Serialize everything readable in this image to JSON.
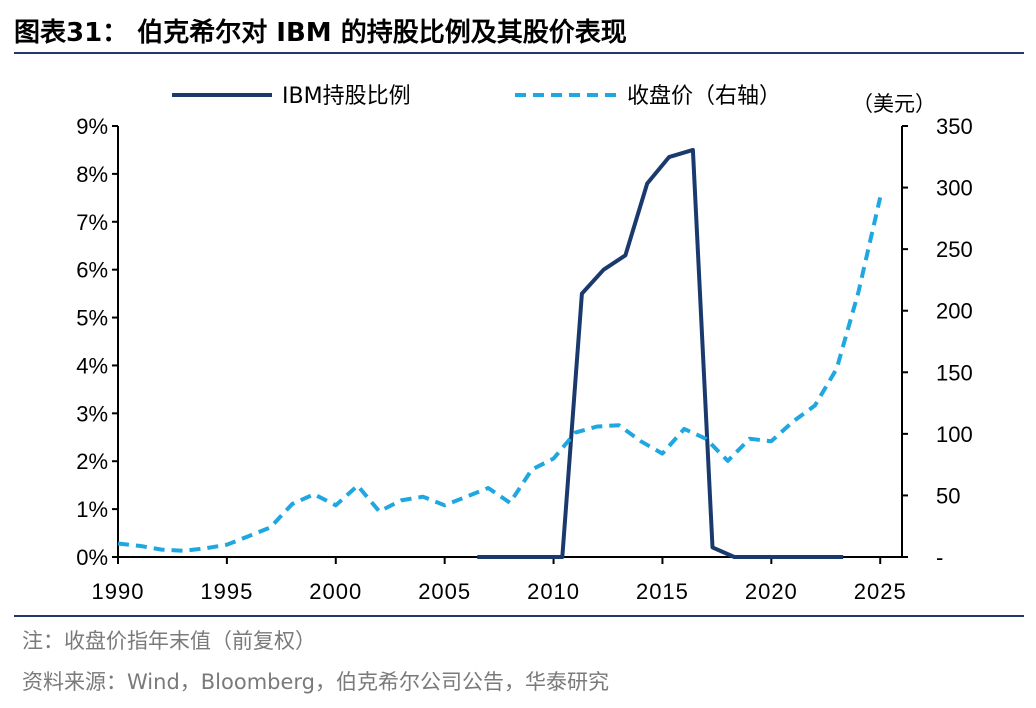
{
  "title": "图表31：  伯克希尔对 IBM 的持股比例及其股价表现",
  "notes": {
    "note": "注：收盘价指年末值（前复权）",
    "source": "资料来源：Wind，Bloomberg，伯克希尔公司公告，华泰研究"
  },
  "colors": {
    "holding": "#1a3a6e",
    "price": "#1ea7e1",
    "rule": "#1f3a68"
  },
  "chart_data": {
    "type": "line",
    "legend_position": "top-center",
    "grid": false,
    "x_ticks": [
      "1990",
      "1995",
      "2000",
      "2005",
      "2010",
      "2015",
      "2020",
      "2025"
    ],
    "xlim": [
      1990,
      2026
    ],
    "left_axis": {
      "ylim": [
        0,
        9
      ],
      "tick_labels": [
        "0%",
        "1%",
        "2%",
        "3%",
        "4%",
        "5%",
        "6%",
        "7%",
        "8%",
        "9%"
      ]
    },
    "right_axis": {
      "unit": "（美元）",
      "ylim": [
        0,
        350
      ],
      "tick_labels": [
        "-",
        "50",
        "100",
        "150",
        "200",
        "250",
        "300",
        "350"
      ]
    },
    "series": [
      {
        "name": "IBM持股比例",
        "axis": "left",
        "style": "solid",
        "x": [
          2006.5,
          2010.4,
          2011.3,
          2012.3,
          2013.3,
          2014.3,
          2015.3,
          2016.4,
          2017.3,
          2018.3,
          2019.3,
          2020.3,
          2021.3,
          2022.3,
          2023.3
        ],
        "y": [
          0,
          0,
          5.5,
          6.0,
          6.3,
          7.8,
          8.35,
          8.5,
          0.2,
          0,
          0,
          0,
          0,
          0,
          0
        ]
      },
      {
        "name": "收盘价（右轴）",
        "axis": "right",
        "style": "dashed",
        "x": [
          1990,
          1991,
          1992,
          1993,
          1994,
          1995,
          1996,
          1997,
          1998,
          1999,
          2000,
          2001,
          2002,
          2003,
          2004,
          2005,
          2006,
          2007,
          2008,
          2009,
          2010,
          2011,
          2012,
          2013,
          2014,
          2015,
          2016,
          2017,
          2018,
          2019,
          2020,
          2021,
          2022,
          2023,
          2024,
          2025
        ],
        "y": [
          11,
          9,
          6,
          5,
          7,
          10,
          17,
          24,
          43,
          51,
          42,
          58,
          37,
          46,
          49,
          42,
          49,
          56,
          44,
          71,
          80,
          101,
          106,
          107,
          94,
          84,
          104,
          96,
          78,
          96,
          94,
          110,
          123,
          153,
          215,
          292
        ]
      }
    ]
  }
}
